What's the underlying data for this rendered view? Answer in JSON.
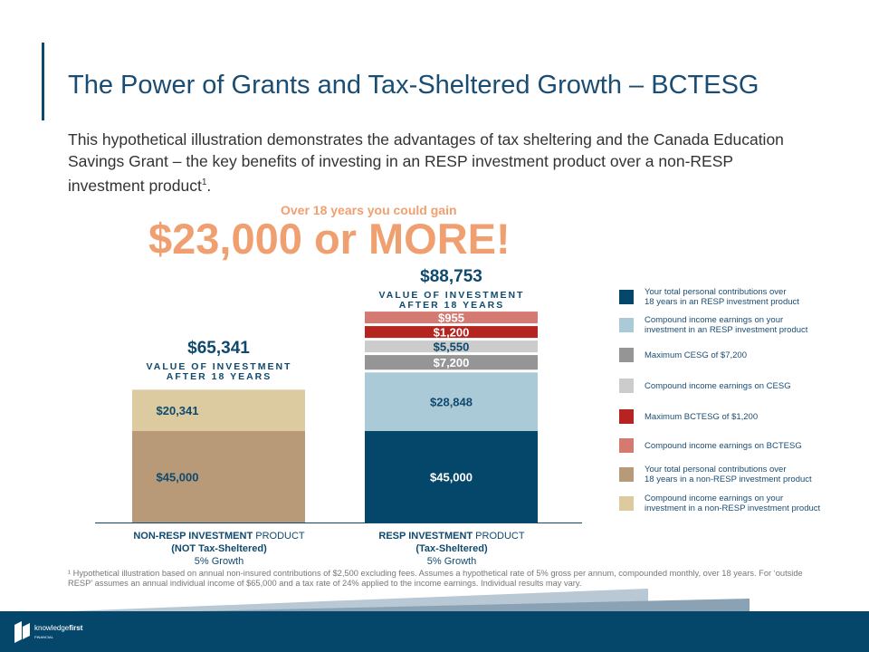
{
  "title": "The Power of Grants and Tax-Sheltered Growth – BCTESG",
  "intro": "This hypothetical illustration demonstrates the advantages of tax sheltering and the Canada Education Savings Grant – the key benefits of investing in an RESP investment product over a non-RESP investment product",
  "intro_sup": "1",
  "intro_end": ".",
  "gain_sub": "Over 18 years you could gain",
  "gain": "$23,000 or MORE!",
  "chart_data": {
    "type": "bar",
    "stacked": true,
    "categories": [
      "NON-RESP INVESTMENT PRODUCT (NOT Tax-Sheltered) 5% Growth",
      "RESP INVESTMENT PRODUCT (Tax-Sheltered) 5% Growth"
    ],
    "category_labels": [
      {
        "bold": "NON-RESP INVESTMENT",
        "rest": " PRODUCT",
        "line2": "(NOT Tax-Sheltered)",
        "line3": "5% Growth"
      },
      {
        "bold": "RESP INVESTMENT",
        "rest": " PRODUCT",
        "line2": "(Tax-Sheltered)",
        "line3": "5% Growth"
      }
    ],
    "totals": [
      {
        "value": "$65,341",
        "label": "VALUE OF INVESTMENT AFTER 18 YEARS"
      },
      {
        "value": "$88,753",
        "label": "VALUE OF INVESTMENT AFTER 18 YEARS"
      }
    ],
    "bars": [
      [
        {
          "value": 45000,
          "label": "$45,000",
          "color": "#b89a78",
          "text": "#0f4a6e"
        },
        {
          "value": 20341,
          "label": "$20,341",
          "color": "#dccba0",
          "text": "#0f4a6e"
        }
      ],
      [
        {
          "value": 45000,
          "label": "$45,000",
          "color": "#05476b",
          "text": "#ffffff"
        },
        {
          "value": 28848,
          "label": "$28,848",
          "color": "#abcad8",
          "text": "#0f4a6e"
        },
        {
          "value": 7200,
          "label": "$7,200",
          "color": "#959595",
          "text": "#ffffff"
        },
        {
          "value": 5550,
          "label": "$5,550",
          "color": "#cccccc",
          "text": "#0f4a6e"
        },
        {
          "value": 1200,
          "label": "$1,200",
          "color": "#b5241f",
          "text": "#ffffff"
        },
        {
          "value": 955,
          "label": "$955",
          "color": "#d47a72",
          "text": "#ffffff"
        }
      ]
    ],
    "legend": [
      {
        "label": "Your total personal contributions over\n18 years in an RESP investment product",
        "color": "#05476b"
      },
      {
        "label": "Compound income earnings on your\ninvestment in an RESP investment product",
        "color": "#abcad8"
      },
      {
        "label": "Maximum CESG of $7,200",
        "color": "#959595"
      },
      {
        "label": "Compound income earnings on CESG",
        "color": "#cccccc"
      },
      {
        "label": "Maximum BCTESG of $1,200",
        "color": "#b5241f"
      },
      {
        "label": "Compound income earnings on BCTESG",
        "color": "#d47a72"
      },
      {
        "label": "Your total personal contributions over\n18 years in a non-RESP investment product",
        "color": "#b89a78"
      },
      {
        "label": "Compound income earnings on your\ninvestment in a non-RESP investment product",
        "color": "#dccba0"
      }
    ],
    "legend_position": "right"
  },
  "footnote": "¹ Hypothetical illustration based on annual non-insured contributions of $2,500 excluding fees. Assumes a hypothetical rate of 5% gross per annum, compounded monthly, over 18 years. For ‘outside RESP’ assumes an annual individual income of $65,000 and a tax rate of 24% applied to the income earnings. Individual results may vary.",
  "logo": "knowledgefirst FINANCIAL"
}
